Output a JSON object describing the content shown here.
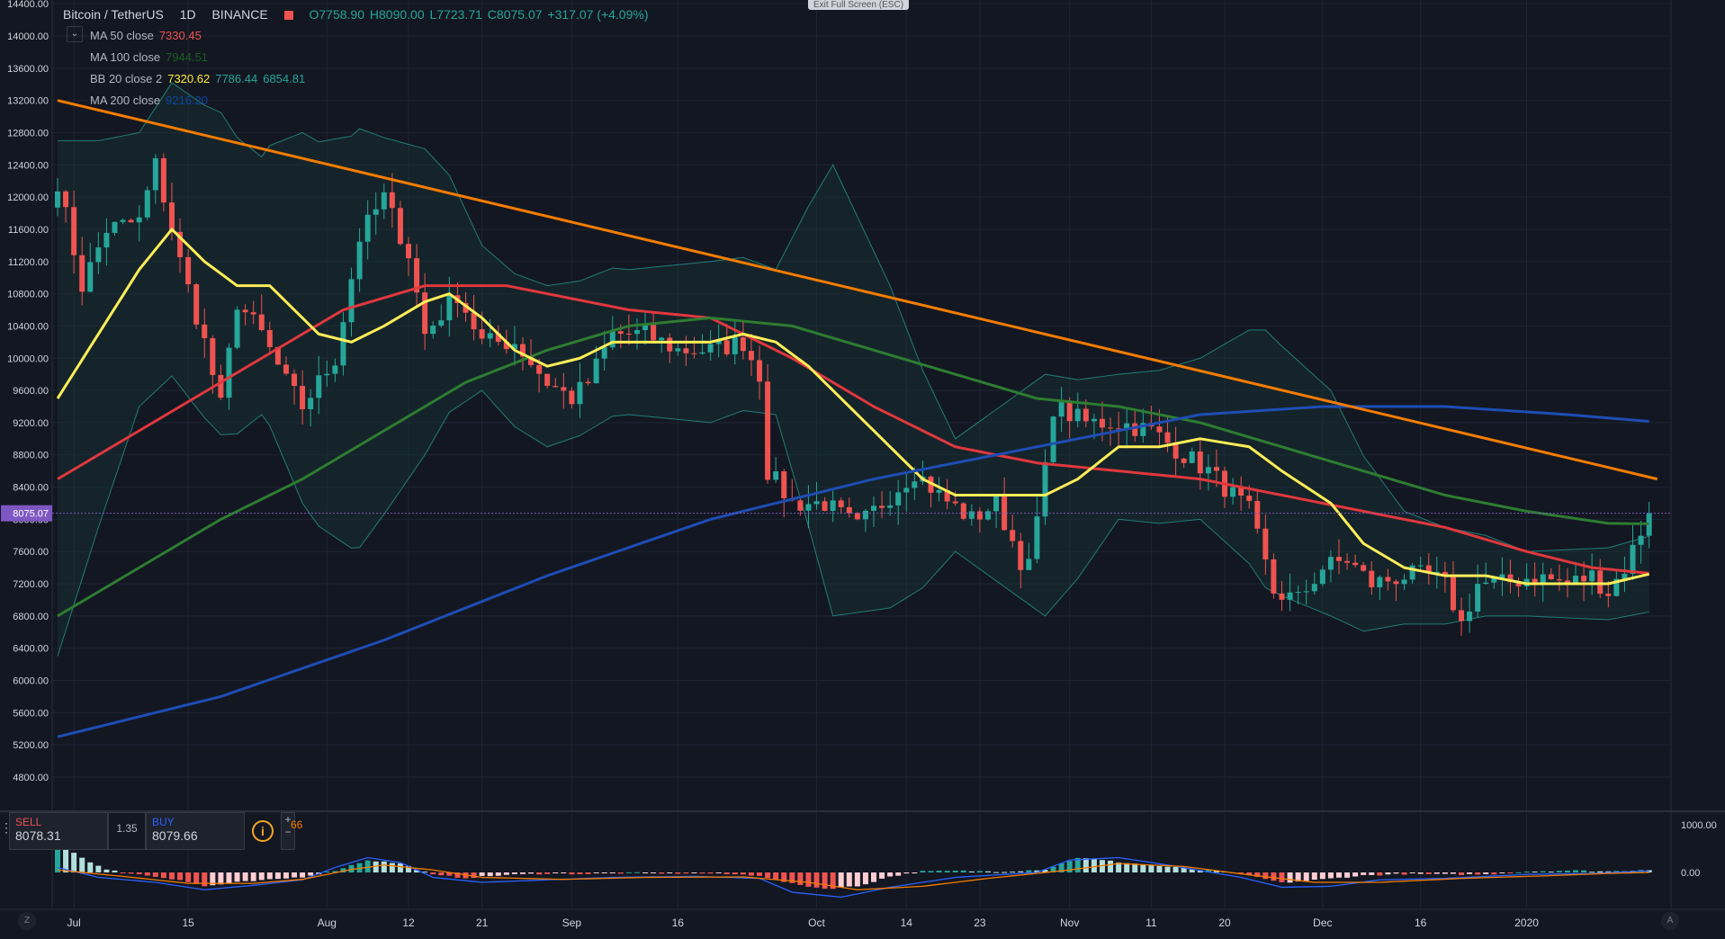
{
  "legend": {
    "symbol": "Bitcoin / TetherUS",
    "interval": "1D",
    "exchange": "BINANCE",
    "open": "O7758.90",
    "high": "H8090.00",
    "low": "L7723.71",
    "close": "C8075.07",
    "change": "+317.07 (+4.09%)",
    "indicators": [
      {
        "name": "MA 50 close",
        "values": [
          "7330.45"
        ],
        "colors": [
          "#ef5350"
        ]
      },
      {
        "name": "MA 100 close",
        "values": [
          "7944.51"
        ],
        "colors": [
          "#1b5e20"
        ]
      },
      {
        "name": "BB 20 close 2",
        "values": [
          "7320.62",
          "7786.44",
          "6854.81"
        ],
        "colors": [
          "#ffeb3b",
          "#26a69a",
          "#26a69a"
        ]
      },
      {
        "name": "MA 200 close",
        "values": [
          "9216.20"
        ],
        "colors": [
          "#0d47a1"
        ]
      }
    ],
    "collapse_icon": "chevron-down-icon"
  },
  "exit_fullscreen": "Exit Full Screen (ESC)",
  "price_axis": {
    "labels": [
      "14400.00",
      "14000.00",
      "13600.00",
      "13200.00",
      "12800.00",
      "12400.00",
      "12000.00",
      "11600.00",
      "11200.00",
      "10800.00",
      "10400.00",
      "10000.00",
      "9600.00",
      "9200.00",
      "8800.00",
      "8400.00",
      "8000.00",
      "7600.00",
      "7200.00",
      "6800.00",
      "6400.00",
      "6000.00",
      "5600.00",
      "5200.00",
      "4800.00"
    ],
    "current": "8075.07"
  },
  "macd_axis": [
    "1000.00",
    "0.00"
  ],
  "time_axis": [
    "Jul",
    "15",
    "Aug",
    "12",
    "21",
    "Sep",
    "16",
    "Oct",
    "14",
    "23",
    "Nov",
    "11",
    "20",
    "Dec",
    "16",
    "2020"
  ],
  "trade": {
    "sell_label": "SELL",
    "sell_price": "8078.31",
    "spread": "1.35",
    "buy_label": "BUY",
    "buy_price": "8079.66",
    "info_icon": "i",
    "plus": "+",
    "minus": "−",
    "quantity": "66"
  },
  "bottom_icons": {
    "left": "Z",
    "right": "A"
  },
  "colors": {
    "up": "#26a69a",
    "down": "#ef5350",
    "ma50": "#e0383e",
    "ma100": "#2e7d32",
    "bb_basis": "#ffee58",
    "bb_band": "#26a69a",
    "ma200": "#1e4db5",
    "trendline": "#f57c00",
    "grid": "#1e2433",
    "current_tag": "#7e57c2"
  },
  "chart_data": {
    "type": "candlestick",
    "title": "Bitcoin / TetherUS 1D BINANCE",
    "x_range": [
      "2019-06-29",
      "2020-01-05"
    ],
    "ylim": [
      4600,
      14500
    ],
    "grid": true,
    "anchors": {
      "close": [
        [
          0,
          12200
        ],
        [
          3,
          10900
        ],
        [
          6,
          11600
        ],
        [
          10,
          11700
        ],
        [
          12,
          12400
        ],
        [
          15,
          11200
        ],
        [
          18,
          10200
        ],
        [
          20,
          9400
        ],
        [
          22,
          10700
        ],
        [
          25,
          10300
        ],
        [
          28,
          9700
        ],
        [
          30,
          9400
        ],
        [
          34,
          10000
        ],
        [
          37,
          11500
        ],
        [
          40,
          12000
        ],
        [
          43,
          11300
        ],
        [
          45,
          10300
        ],
        [
          49,
          10800
        ],
        [
          52,
          10200
        ],
        [
          56,
          10200
        ],
        [
          60,
          9700
        ],
        [
          63,
          9500
        ],
        [
          65,
          9700
        ],
        [
          68,
          10300
        ],
        [
          72,
          10300
        ],
        [
          76,
          10100
        ],
        [
          80,
          10100
        ],
        [
          84,
          10200
        ],
        [
          86,
          9800
        ],
        [
          87,
          8600
        ],
        [
          90,
          8200
        ],
        [
          94,
          8200
        ],
        [
          98,
          7900
        ],
        [
          102,
          8300
        ],
        [
          105,
          8600
        ],
        [
          108,
          8300
        ],
        [
          112,
          8000
        ],
        [
          115,
          8200
        ],
        [
          118,
          7500
        ],
        [
          119,
          7400
        ],
        [
          121,
          8600
        ],
        [
          122,
          9400
        ],
        [
          126,
          9200
        ],
        [
          130,
          9200
        ],
        [
          134,
          9100
        ],
        [
          138,
          8800
        ],
        [
          141,
          8600
        ],
        [
          143,
          8400
        ],
        [
          146,
          8100
        ],
        [
          149,
          7100
        ],
        [
          152,
          7000
        ],
        [
          155,
          7400
        ],
        [
          158,
          7500
        ],
        [
          161,
          7200
        ],
        [
          165,
          7300
        ],
        [
          168,
          7300
        ],
        [
          170,
          7200
        ],
        [
          172,
          6700
        ],
        [
          174,
          7200
        ],
        [
          177,
          7200
        ],
        [
          181,
          7300
        ],
        [
          185,
          7200
        ],
        [
          188,
          7300
        ],
        [
          190,
          7100
        ],
        [
          192,
          7400
        ],
        [
          195,
          8075
        ]
      ]
    },
    "series": [
      {
        "name": "MA 50 close",
        "points": [
          [
            0,
            8500
          ],
          [
            10,
            9100
          ],
          [
            25,
            10000
          ],
          [
            35,
            10600
          ],
          [
            45,
            10900
          ],
          [
            55,
            10900
          ],
          [
            70,
            10600
          ],
          [
            80,
            10500
          ],
          [
            90,
            10000
          ],
          [
            100,
            9400
          ],
          [
            110,
            8900
          ],
          [
            120,
            8700
          ],
          [
            130,
            8600
          ],
          [
            140,
            8500
          ],
          [
            150,
            8300
          ],
          [
            160,
            8100
          ],
          [
            170,
            7900
          ],
          [
            180,
            7600
          ],
          [
            188,
            7400
          ],
          [
            195,
            7330
          ]
        ]
      },
      {
        "name": "MA 100 close",
        "points": [
          [
            0,
            6800
          ],
          [
            10,
            7400
          ],
          [
            20,
            8000
          ],
          [
            30,
            8500
          ],
          [
            40,
            9100
          ],
          [
            50,
            9700
          ],
          [
            60,
            10100
          ],
          [
            70,
            10400
          ],
          [
            80,
            10500
          ],
          [
            90,
            10400
          ],
          [
            100,
            10100
          ],
          [
            110,
            9800
          ],
          [
            120,
            9500
          ],
          [
            130,
            9400
          ],
          [
            140,
            9200
          ],
          [
            150,
            8900
          ],
          [
            160,
            8600
          ],
          [
            170,
            8300
          ],
          [
            180,
            8100
          ],
          [
            190,
            7950
          ],
          [
            195,
            7944
          ]
        ]
      },
      {
        "name": "BB 20 close 2",
        "points": [
          [
            0,
            9500
          ],
          [
            5,
            10300
          ],
          [
            10,
            11100
          ],
          [
            14,
            11600
          ],
          [
            18,
            11200
          ],
          [
            22,
            10900
          ],
          [
            26,
            10900
          ],
          [
            32,
            10300
          ],
          [
            36,
            10200
          ],
          [
            40,
            10400
          ],
          [
            45,
            10700
          ],
          [
            48,
            10800
          ],
          [
            52,
            10500
          ],
          [
            56,
            10100
          ],
          [
            60,
            9900
          ],
          [
            64,
            10000
          ],
          [
            68,
            10200
          ],
          [
            74,
            10200
          ],
          [
            80,
            10200
          ],
          [
            84,
            10300
          ],
          [
            88,
            10200
          ],
          [
            92,
            9900
          ],
          [
            96,
            9500
          ],
          [
            102,
            8900
          ],
          [
            106,
            8500
          ],
          [
            110,
            8300
          ],
          [
            116,
            8300
          ],
          [
            121,
            8300
          ],
          [
            125,
            8500
          ],
          [
            130,
            8900
          ],
          [
            135,
            8900
          ],
          [
            140,
            9000
          ],
          [
            146,
            8900
          ],
          [
            150,
            8600
          ],
          [
            156,
            8200
          ],
          [
            160,
            7700
          ],
          [
            165,
            7400
          ],
          [
            170,
            7300
          ],
          [
            175,
            7300
          ],
          [
            180,
            7200
          ],
          [
            185,
            7200
          ],
          [
            190,
            7200
          ],
          [
            195,
            7320
          ]
        ]
      },
      {
        "name": "MA 200 close",
        "points": [
          [
            0,
            5300
          ],
          [
            20,
            5800
          ],
          [
            40,
            6500
          ],
          [
            60,
            7300
          ],
          [
            80,
            8000
          ],
          [
            100,
            8500
          ],
          [
            120,
            8900
          ],
          [
            140,
            9300
          ],
          [
            155,
            9400
          ],
          [
            170,
            9400
          ],
          [
            185,
            9300
          ],
          [
            195,
            9216
          ]
        ]
      },
      {
        "name": "Trendline",
        "points": [
          [
            0,
            13200
          ],
          [
            196,
            8500
          ]
        ]
      }
    ],
    "bb_width": [
      [
        0,
        3200
      ],
      [
        5,
        2400
      ],
      [
        10,
        1700
      ],
      [
        20,
        2000
      ],
      [
        25,
        1600
      ],
      [
        30,
        2300
      ],
      [
        37,
        2600
      ],
      [
        45,
        1900
      ],
      [
        52,
        900
      ],
      [
        60,
        1000
      ],
      [
        70,
        900
      ],
      [
        80,
        1000
      ],
      [
        88,
        900
      ],
      [
        95,
        2800
      ],
      [
        102,
        2000
      ],
      [
        110,
        700
      ],
      [
        121,
        1500
      ],
      [
        130,
        900
      ],
      [
        140,
        1000
      ],
      [
        148,
        1600
      ],
      [
        156,
        1400
      ],
      [
        165,
        700
      ],
      [
        180,
        400
      ],
      [
        195,
        470
      ]
    ],
    "macd": {
      "axis": [
        "1000.00",
        "0.00"
      ],
      "hist_anchors": [
        [
          0,
          600
        ],
        [
          3,
          300
        ],
        [
          6,
          50
        ],
        [
          10,
          -40
        ],
        [
          15,
          -150
        ],
        [
          18,
          -280
        ],
        [
          22,
          -200
        ],
        [
          26,
          -150
        ],
        [
          30,
          -90
        ],
        [
          34,
          40
        ],
        [
          38,
          250
        ],
        [
          42,
          180
        ],
        [
          46,
          -50
        ],
        [
          50,
          -110
        ],
        [
          55,
          -50
        ],
        [
          60,
          -20
        ],
        [
          65,
          -30
        ],
        [
          70,
          -10
        ],
        [
          80,
          -20
        ],
        [
          86,
          -60
        ],
        [
          90,
          -230
        ],
        [
          94,
          -330
        ],
        [
          98,
          -280
        ],
        [
          102,
          -80
        ],
        [
          106,
          20
        ],
        [
          110,
          30
        ],
        [
          116,
          20
        ],
        [
          121,
          60
        ],
        [
          125,
          300
        ],
        [
          130,
          210
        ],
        [
          135,
          130
        ],
        [
          140,
          50
        ],
        [
          145,
          -20
        ],
        [
          150,
          -210
        ],
        [
          155,
          -140
        ],
        [
          160,
          -60
        ],
        [
          165,
          -30
        ],
        [
          170,
          -40
        ],
        [
          175,
          -40
        ],
        [
          180,
          20
        ],
        [
          185,
          40
        ],
        [
          190,
          20
        ],
        [
          195,
          60
        ]
      ],
      "macd_anchors": [
        [
          0,
          100
        ],
        [
          5,
          -100
        ],
        [
          12,
          -200
        ],
        [
          18,
          -350
        ],
        [
          24,
          -260
        ],
        [
          30,
          -150
        ],
        [
          34,
          100
        ],
        [
          38,
          300
        ],
        [
          42,
          200
        ],
        [
          46,
          -100
        ],
        [
          52,
          -200
        ],
        [
          60,
          -150
        ],
        [
          68,
          -100
        ],
        [
          78,
          -80
        ],
        [
          86,
          -120
        ],
        [
          90,
          -400
        ],
        [
          96,
          -500
        ],
        [
          102,
          -300
        ],
        [
          110,
          -100
        ],
        [
          120,
          0
        ],
        [
          124,
          250
        ],
        [
          130,
          300
        ],
        [
          136,
          150
        ],
        [
          145,
          -100
        ],
        [
          150,
          -300
        ],
        [
          156,
          -280
        ],
        [
          162,
          -150
        ],
        [
          170,
          -120
        ],
        [
          180,
          -40
        ],
        [
          188,
          -20
        ],
        [
          195,
          30
        ]
      ],
      "signal_anchors": [
        [
          0,
          50
        ],
        [
          8,
          -80
        ],
        [
          16,
          -220
        ],
        [
          24,
          -220
        ],
        [
          30,
          -140
        ],
        [
          36,
          60
        ],
        [
          40,
          150
        ],
        [
          46,
          50
        ],
        [
          52,
          -100
        ],
        [
          62,
          -140
        ],
        [
          72,
          -100
        ],
        [
          84,
          -90
        ],
        [
          92,
          -200
        ],
        [
          98,
          -350
        ],
        [
          106,
          -280
        ],
        [
          114,
          -120
        ],
        [
          124,
          50
        ],
        [
          130,
          180
        ],
        [
          138,
          120
        ],
        [
          146,
          -50
        ],
        [
          154,
          -200
        ],
        [
          162,
          -200
        ],
        [
          172,
          -120
        ],
        [
          182,
          -70
        ],
        [
          190,
          -20
        ],
        [
          195,
          0
        ]
      ]
    }
  }
}
